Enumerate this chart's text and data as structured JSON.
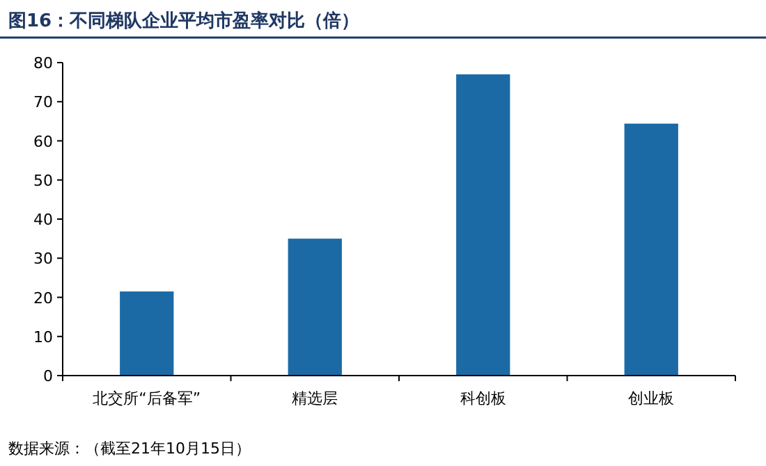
{
  "chart_data": {
    "type": "bar",
    "title": "图16：不同梯队企业平均市盈率对比（倍）",
    "categories": [
      "北交所“后备军”",
      "精选层",
      "科创板",
      "创业板"
    ],
    "values": [
      21.5,
      35.0,
      77.0,
      64.4
    ],
    "color": "#1b6aa5",
    "ylim": [
      0,
      80
    ],
    "yticks": [
      0,
      10,
      20,
      30,
      40,
      50,
      60,
      70,
      80
    ],
    "grid": false,
    "annotations": [
      "数据来源：（截至21年10月15日）"
    ]
  }
}
